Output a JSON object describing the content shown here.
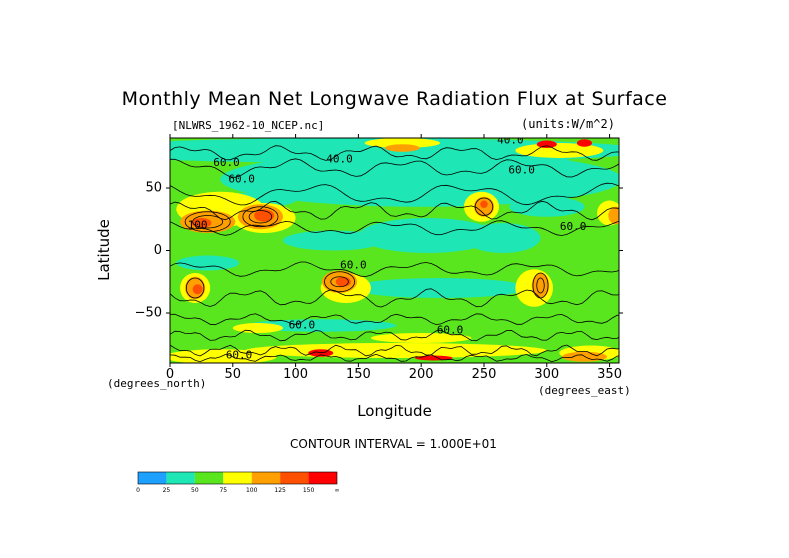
{
  "chart_data": {
    "type": "heatmap",
    "title": "Monthly Mean Net Longwave Radiation Flux at Surface",
    "file_label": "[NLWRS_1962-10_NCEP.nc]",
    "units_label": "(units:W/m^2)",
    "xlabel": "Longitude",
    "ylabel": "Latitude",
    "x_unit_label": "(degrees_east)",
    "y_unit_label": "(degrees_north)",
    "contour_interval_text": "CONTOUR INTERVAL = 1.000E+01",
    "xlim": [
      0,
      357.5
    ],
    "ylim": [
      -90,
      90
    ],
    "x_ticks": [
      "0",
      "50",
      "100",
      "150",
      "200",
      "250",
      "300",
      "350"
    ],
    "y_ticks": [
      "50",
      "0",
      "−50"
    ],
    "contour_labels": [
      {
        "text": "60.0",
        "lon": 45,
        "lat": 70
      },
      {
        "text": "40.0",
        "lon": 135,
        "lat": 73
      },
      {
        "text": "60.0",
        "lon": 57,
        "lat": 57
      },
      {
        "text": "40.0",
        "lon": 271,
        "lat": 88
      },
      {
        "text": "60.0",
        "lon": 280,
        "lat": 64
      },
      {
        "text": "100",
        "lon": 22,
        "lat": 20
      },
      {
        "text": "60.0",
        "lon": 321,
        "lat": 19
      },
      {
        "text": "60.0",
        "lon": 146,
        "lat": -12
      },
      {
        "text": "60.0",
        "lon": 105,
        "lat": -60
      },
      {
        "text": "60.0",
        "lon": 223,
        "lat": -64
      },
      {
        "text": "60.0",
        "lon": 55,
        "lat": -84
      }
    ],
    "colorbar": {
      "colors": [
        "#1ea0ff",
        "#1ee6b4",
        "#5ae61e",
        "#ffff00",
        "#ffa000",
        "#ff5000",
        "#ff0000"
      ],
      "labels": [
        "0",
        "25",
        "50",
        "75",
        "100",
        "125",
        "150",
        "∞"
      ]
    }
  }
}
